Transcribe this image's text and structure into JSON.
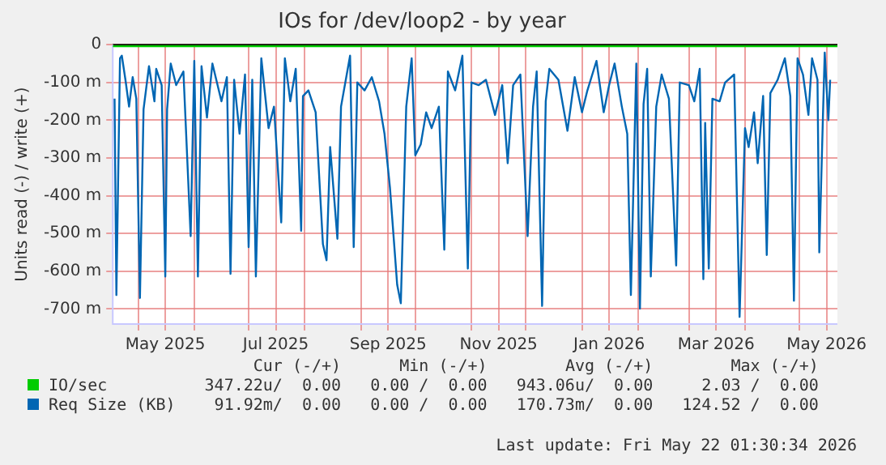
{
  "chart_data": {
    "type": "line",
    "title": "IOs for /dev/loop2 - by year",
    "ylabel": "Units read (-) / write (+)",
    "xlim": [
      "2025-04-17",
      "2026-05-22"
    ],
    "ylim": [
      -740,
      0
    ],
    "xticks": [
      {
        "value": "2025-05-01",
        "label": null
      },
      {
        "value": "2025-05-16",
        "label": "May 2025"
      },
      {
        "value": "2025-06-01",
        "label": null
      },
      {
        "value": "2025-07-01",
        "label": null
      },
      {
        "value": "2025-07-16",
        "label": "Jul 2025"
      },
      {
        "value": "2025-08-01",
        "label": null
      },
      {
        "value": "2025-09-01",
        "label": null
      },
      {
        "value": "2025-09-16",
        "label": "Sep 2025"
      },
      {
        "value": "2025-10-01",
        "label": null
      },
      {
        "value": "2025-11-01",
        "label": null
      },
      {
        "value": "2025-11-16",
        "label": "Nov 2025"
      },
      {
        "value": "2025-12-01",
        "label": null
      },
      {
        "value": "2026-01-01",
        "label": null
      },
      {
        "value": "2026-01-16",
        "label": "Jan 2026"
      },
      {
        "value": "2026-02-01",
        "label": null
      },
      {
        "value": "2026-03-01",
        "label": null
      },
      {
        "value": "2026-03-16",
        "label": "Mar 2026"
      },
      {
        "value": "2026-04-01",
        "label": null
      },
      {
        "value": "2026-05-01",
        "label": null
      },
      {
        "value": "2026-05-16",
        "label": "May 2026"
      }
    ],
    "yticks": [
      {
        "value": -700,
        "label": "-700 m"
      },
      {
        "value": -600,
        "label": "-600 m"
      },
      {
        "value": -500,
        "label": "-500 m"
      },
      {
        "value": -400,
        "label": "-400 m"
      },
      {
        "value": -300,
        "label": "-300 m"
      },
      {
        "value": -200,
        "label": "-200 m"
      },
      {
        "value": -100,
        "label": "-100 m"
      },
      0
    ],
    "grid": true,
    "legend": "bottom",
    "line_style": "solid",
    "marker": "none",
    "annotations": [
      "Cur (-/+)",
      "Min (-/+)",
      "Avg (-/+)",
      "Max (-/+)",
      "347.22u/  0.00",
      "0.00 /  0.00",
      "943.06u/  0.00",
      "2.03 /  0.00",
      "91.92m/  0.00",
      "0.00 /  0.00",
      "170.73m/  0.00",
      "124.52 /  0.00",
      "Last update: Fri May 22 01:30:34 2026"
    ],
    "series": [
      {
        "name": "IO/sec",
        "color": "#00cc00",
        "x": [
          "2025-04-17",
          "2026-05-22"
        ],
        "values": [
          -4,
          -4
        ]
      },
      {
        "name": "Req Size (KB)",
        "color": "#0066b3",
        "x": [
          "2025-04-18",
          "2025-04-19",
          "2025-04-21",
          "2025-04-22",
          "2025-04-24",
          "2025-04-26",
          "2025-04-28",
          "2025-04-30",
          "2025-05-02",
          "2025-05-04",
          "2025-05-07",
          "2025-05-10",
          "2025-05-11",
          "2025-05-14",
          "2025-05-16",
          "2025-05-17",
          "2025-05-19",
          "2025-05-22",
          "2025-05-26",
          "2025-05-30",
          "2025-06-01",
          "2025-06-03",
          "2025-06-05",
          "2025-06-08",
          "2025-06-11",
          "2025-06-16",
          "2025-06-19",
          "2025-06-21",
          "2025-06-23",
          "2025-06-26",
          "2025-06-29",
          "2025-07-01",
          "2025-07-03",
          "2025-07-05",
          "2025-07-08",
          "2025-07-12",
          "2025-07-15",
          "2025-07-19",
          "2025-07-21",
          "2025-07-24",
          "2025-07-27",
          "2025-07-30",
          "2025-07-31",
          "2025-08-03",
          "2025-08-07",
          "2025-08-11",
          "2025-08-13",
          "2025-08-15",
          "2025-08-19",
          "2025-08-21",
          "2025-08-26",
          "2025-08-28",
          "2025-08-30",
          "2025-09-03",
          "2025-09-07",
          "2025-09-11",
          "2025-09-14",
          "2025-09-17",
          "2025-09-21",
          "2025-09-23",
          "2025-09-26",
          "2025-09-29",
          "2025-10-01",
          "2025-10-04",
          "2025-10-07",
          "2025-10-10",
          "2025-10-14",
          "2025-10-17",
          "2025-10-19",
          "2025-10-23",
          "2025-10-27",
          "2025-10-30",
          "2025-11-01",
          "2025-11-05",
          "2025-11-09",
          "2025-11-14",
          "2025-11-18",
          "2025-11-21",
          "2025-11-24",
          "2025-11-28",
          "2025-12-02",
          "2025-12-05",
          "2025-12-07",
          "2025-12-10",
          "2025-12-12",
          "2025-12-14",
          "2025-12-19",
          "2025-12-24",
          "2025-12-28",
          "2026-01-01",
          "2026-01-04",
          "2026-01-09",
          "2026-01-13",
          "2026-01-16",
          "2026-01-19",
          "2026-01-23",
          "2026-01-26",
          "2026-01-28",
          "2026-01-31",
          "2026-02-02",
          "2026-02-04",
          "2026-02-06",
          "2026-02-08",
          "2026-02-11",
          "2026-02-14",
          "2026-02-18",
          "2026-02-22",
          "2026-02-24",
          "2026-03-01",
          "2026-03-04",
          "2026-03-07",
          "2026-03-09",
          "2026-03-10",
          "2026-03-12",
          "2026-03-14",
          "2026-03-18",
          "2026-03-21",
          "2026-03-26",
          "2026-03-29",
          "2026-04-01",
          "2026-04-03",
          "2026-04-06",
          "2026-04-08",
          "2026-04-11",
          "2026-04-13",
          "2026-04-15",
          "2026-04-19",
          "2026-04-23",
          "2026-04-26",
          "2026-04-28",
          "2026-04-30",
          "2026-05-03",
          "2026-05-06",
          "2026-05-08",
          "2026-05-11",
          "2026-05-12",
          "2026-05-14",
          "2026-05-15",
          "2026-05-17",
          "2026-05-18"
        ],
        "values": [
          -143,
          -663,
          -36,
          -29,
          -93,
          -164,
          -86,
          -143,
          -671,
          -171,
          -57,
          -150,
          -64,
          -107,
          -614,
          -171,
          -50,
          -107,
          -71,
          -507,
          -43,
          -614,
          -57,
          -193,
          -50,
          -150,
          -86,
          -607,
          -93,
          -236,
          -79,
          -536,
          -93,
          -614,
          -36,
          -221,
          -164,
          -471,
          -36,
          -150,
          -64,
          -493,
          -136,
          -121,
          -179,
          -528,
          -571,
          -271,
          -514,
          -164,
          -29,
          -536,
          -100,
          -121,
          -86,
          -150,
          -236,
          -378,
          -636,
          -685,
          -164,
          -36,
          -293,
          -264,
          -179,
          -221,
          -164,
          -543,
          -71,
          -121,
          -29,
          -593,
          -100,
          -107,
          -93,
          -186,
          -107,
          -314,
          -107,
          -79,
          -507,
          -164,
          -71,
          -692,
          -150,
          -64,
          -93,
          -228,
          -86,
          -179,
          -121,
          -43,
          -179,
          -107,
          -50,
          -164,
          -236,
          -663,
          -50,
          -699,
          -157,
          -64,
          -614,
          -164,
          -79,
          -143,
          -585,
          -100,
          -107,
          -150,
          -64,
          -621,
          -207,
          -593,
          -143,
          -150,
          -100,
          -79,
          -721,
          -221,
          -271,
          -179,
          -314,
          -136,
          -557,
          -128,
          -93,
          -36,
          -136,
          -678,
          -36,
          -79,
          -186,
          -36,
          -93,
          -550,
          -193,
          -21,
          -200,
          -93
        ]
      }
    ]
  }
}
